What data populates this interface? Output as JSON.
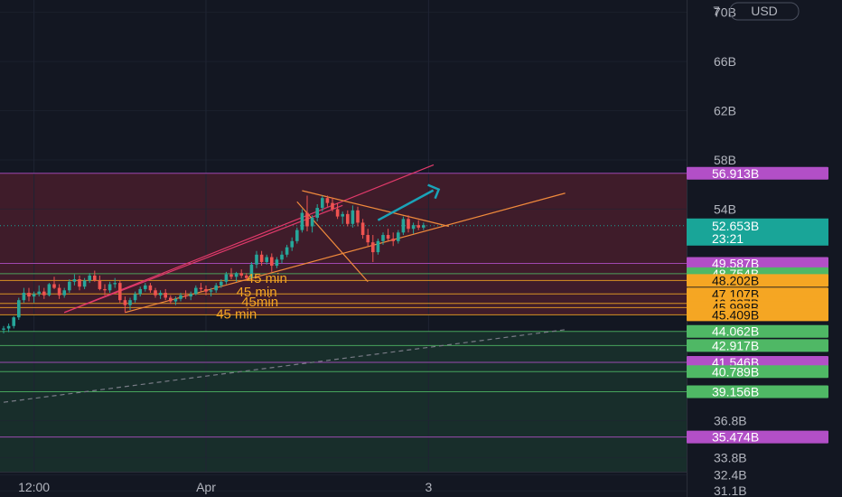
{
  "currency_button": {
    "label": "USD"
  },
  "top_partial_label": "7",
  "colors": {
    "background": "#131722",
    "grid": "#1f2433",
    "red_zone": "#e0334a",
    "green_zone": "#3aa85c",
    "candle_up": "#26a69a",
    "candle_down": "#ef5350",
    "orange_line": "#f08a3c",
    "pink_line": "#e23a6b",
    "arrow": "#1aa3b8",
    "badge_purple": "#b24fc7",
    "badge_green": "#4fb865",
    "badge_orange": "#f5a623",
    "badge_teal": "#19a598"
  },
  "chart_data": {
    "type": "candlestick",
    "ylim": [
      30.6,
      71.0
    ],
    "x_axis": {
      "ticks": [
        {
          "label": "12:00",
          "bar": 6
        },
        {
          "label": "Apr",
          "bar": 40
        },
        {
          "label": "3",
          "bar": 84
        }
      ]
    },
    "y_ticks": [
      "70B",
      "66B",
      "62B",
      "58B",
      "54B",
      "36.8B",
      "33.8B",
      "32.4B",
      "31.1B"
    ],
    "y_tick_values": [
      70,
      66,
      62,
      58,
      54,
      36.8,
      33.8,
      32.4,
      31.1
    ],
    "zones": [
      {
        "name": "resistance-zone",
        "color": "red",
        "from": 45.409,
        "to": 56.913
      },
      {
        "name": "support-zone",
        "color": "green",
        "from": 31.1,
        "to": 44.062
      }
    ],
    "price_levels": [
      {
        "label": "56.913B",
        "value": 56.913,
        "badge": "purple"
      },
      {
        "label": "49.587B",
        "value": 49.587,
        "badge": "purple"
      },
      {
        "label": "48.754B",
        "value": 48.754,
        "badge": "green"
      },
      {
        "label": "48.202B",
        "value": 48.202,
        "badge": "orange"
      },
      {
        "label": "47.107B",
        "value": 47.107,
        "badge": "orange"
      },
      {
        "label": "46.337B",
        "value": 46.337,
        "badge": "orange"
      },
      {
        "label": "45.998B",
        "value": 45.998,
        "badge": "orange"
      },
      {
        "label": "45.409B",
        "value": 45.409,
        "badge": "orange"
      },
      {
        "label": "44.062B",
        "value": 44.062,
        "badge": "green"
      },
      {
        "label": "42.917B",
        "value": 42.917,
        "badge": "green"
      },
      {
        "label": "41.546B",
        "value": 41.546,
        "badge": "purple"
      },
      {
        "label": "40.789B",
        "value": 40.789,
        "badge": "green"
      },
      {
        "label": "39.156B",
        "value": 39.156,
        "badge": "green"
      },
      {
        "label": "35.474B",
        "value": 35.474,
        "badge": "purple"
      }
    ],
    "last_price": {
      "label": "52.653B",
      "value": 52.653,
      "countdown": "23:21"
    },
    "annotations": [
      {
        "text": "45 min",
        "bar": 48,
        "value": 48.0
      },
      {
        "text": "45 min",
        "bar": 46,
        "value": 46.9
      },
      {
        "text": "45min",
        "bar": 47,
        "value": 46.1
      },
      {
        "text": "45 min",
        "bar": 42,
        "value": 45.1
      }
    ],
    "trendlines": [
      {
        "color": "pink",
        "from": [
          12,
          45.6
        ],
        "to": [
          85,
          57.6
        ]
      },
      {
        "color": "pink",
        "from": [
          12,
          45.6
        ],
        "to": [
          67,
          54.3
        ]
      },
      {
        "color": "orange",
        "from": [
          24,
          45.6
        ],
        "to": [
          111,
          55.3
        ]
      },
      {
        "color": "orange",
        "from": [
          59,
          55.5
        ],
        "to": [
          88,
          52.6
        ]
      },
      {
        "color": "orange",
        "from": [
          58,
          54.6
        ],
        "to": [
          72,
          48.1
        ]
      },
      {
        "color": "dashed",
        "from": [
          0,
          38.3
        ],
        "to": [
          111,
          44.2
        ]
      }
    ],
    "arrow": {
      "from": [
        74,
        53.1
      ],
      "to": [
        86,
        55.6
      ]
    },
    "candles": [
      [
        44.2,
        44.5,
        43.9,
        44.3
      ],
      [
        44.3,
        44.7,
        44.0,
        44.5
      ],
      [
        44.5,
        45.3,
        44.3,
        45.2
      ],
      [
        45.2,
        46.8,
        45.0,
        46.6
      ],
      [
        46.6,
        47.6,
        46.4,
        47.2
      ],
      [
        47.2,
        47.6,
        46.5,
        46.9
      ],
      [
        46.9,
        47.3,
        46.4,
        47.1
      ],
      [
        47.1,
        47.8,
        46.9,
        47.3
      ],
      [
        47.3,
        47.6,
        46.7,
        47.0
      ],
      [
        47.0,
        48.0,
        46.9,
        47.9
      ],
      [
        47.9,
        48.5,
        47.5,
        47.6
      ],
      [
        47.6,
        47.9,
        46.7,
        47.0
      ],
      [
        47.0,
        47.6,
        46.8,
        47.4
      ],
      [
        47.4,
        48.3,
        47.2,
        48.1
      ],
      [
        48.1,
        48.7,
        47.8,
        48.3
      ],
      [
        48.3,
        48.6,
        47.4,
        47.7
      ],
      [
        47.7,
        48.4,
        47.5,
        48.2
      ],
      [
        48.2,
        48.8,
        48.0,
        48.6
      ],
      [
        48.6,
        49.0,
        48.1,
        48.2
      ],
      [
        48.2,
        48.6,
        47.4,
        47.5
      ],
      [
        47.5,
        47.9,
        47.0,
        47.4
      ],
      [
        47.4,
        48.1,
        47.2,
        47.9
      ],
      [
        47.9,
        48.4,
        47.6,
        48.0
      ],
      [
        48.0,
        48.2,
        46.4,
        46.6
      ],
      [
        46.6,
        46.9,
        45.6,
        46.2
      ],
      [
        46.2,
        46.8,
        45.8,
        46.6
      ],
      [
        46.6,
        47.3,
        46.4,
        47.1
      ],
      [
        47.1,
        47.7,
        46.9,
        47.5
      ],
      [
        47.5,
        48.0,
        47.3,
        47.8
      ],
      [
        47.8,
        48.0,
        47.2,
        47.4
      ],
      [
        47.4,
        47.6,
        46.8,
        47.0
      ],
      [
        47.0,
        47.4,
        46.7,
        47.2
      ],
      [
        47.2,
        47.5,
        46.6,
        46.8
      ],
      [
        46.8,
        47.0,
        46.3,
        46.5
      ],
      [
        46.5,
        46.9,
        46.2,
        46.7
      ],
      [
        46.7,
        47.2,
        46.5,
        47.0
      ],
      [
        47.0,
        47.4,
        46.7,
        46.9
      ],
      [
        46.9,
        47.3,
        46.6,
        47.1
      ],
      [
        47.1,
        47.8,
        47.0,
        47.6
      ],
      [
        47.6,
        48.0,
        47.3,
        47.5
      ],
      [
        47.5,
        47.8,
        47.0,
        47.3
      ],
      [
        47.3,
        47.6,
        46.9,
        47.4
      ],
      [
        47.4,
        48.0,
        47.2,
        47.8
      ],
      [
        47.8,
        48.3,
        47.6,
        48.1
      ],
      [
        48.1,
        48.9,
        47.9,
        48.7
      ],
      [
        48.7,
        49.2,
        48.3,
        48.5
      ],
      [
        48.5,
        48.9,
        48.1,
        48.8
      ],
      [
        48.8,
        49.1,
        48.4,
        48.6
      ],
      [
        48.6,
        48.8,
        48.2,
        48.4
      ],
      [
        48.4,
        49.7,
        48.3,
        49.5
      ],
      [
        49.5,
        50.6,
        49.2,
        50.3
      ],
      [
        50.3,
        50.6,
        49.4,
        49.7
      ],
      [
        49.7,
        50.3,
        49.5,
        50.1
      ],
      [
        50.1,
        50.4,
        48.9,
        49.4
      ],
      [
        49.4,
        50.1,
        49.2,
        49.9
      ],
      [
        49.9,
        50.6,
        49.6,
        50.3
      ],
      [
        50.3,
        51.1,
        50.1,
        50.9
      ],
      [
        50.9,
        51.7,
        50.6,
        51.4
      ],
      [
        51.4,
        52.5,
        51.2,
        52.3
      ],
      [
        52.3,
        54.0,
        52.1,
        53.7
      ],
      [
        53.7,
        55.1,
        52.2,
        52.6
      ],
      [
        52.6,
        53.5,
        52.1,
        53.3
      ],
      [
        53.3,
        54.4,
        53.0,
        54.1
      ],
      [
        54.1,
        55.1,
        53.8,
        54.9
      ],
      [
        54.9,
        55.1,
        54.2,
        54.5
      ],
      [
        54.5,
        54.9,
        53.8,
        54.0
      ],
      [
        54.0,
        54.5,
        53.2,
        53.4
      ],
      [
        53.4,
        53.8,
        52.8,
        53.6
      ],
      [
        53.6,
        53.9,
        52.6,
        52.8
      ],
      [
        52.8,
        54.3,
        52.5,
        53.9
      ],
      [
        53.9,
        54.2,
        52.6,
        52.9
      ],
      [
        52.9,
        53.2,
        51.6,
        51.9
      ],
      [
        51.9,
        52.4,
        51.0,
        51.3
      ],
      [
        51.3,
        51.9,
        49.7,
        50.5
      ],
      [
        50.5,
        51.6,
        50.3,
        51.4
      ],
      [
        51.4,
        52.1,
        51.1,
        51.9
      ],
      [
        51.9,
        52.4,
        51.4,
        51.6
      ],
      [
        51.6,
        52.1,
        51.0,
        51.4
      ],
      [
        51.4,
        52.3,
        51.2,
        52.1
      ],
      [
        52.1,
        53.4,
        51.9,
        53.2
      ],
      [
        53.2,
        53.5,
        52.1,
        52.4
      ],
      [
        52.4,
        52.9,
        52.0,
        52.7
      ],
      [
        52.7,
        53.1,
        52.3,
        52.5
      ],
      [
        52.5,
        52.9,
        52.3,
        52.7
      ]
    ]
  }
}
